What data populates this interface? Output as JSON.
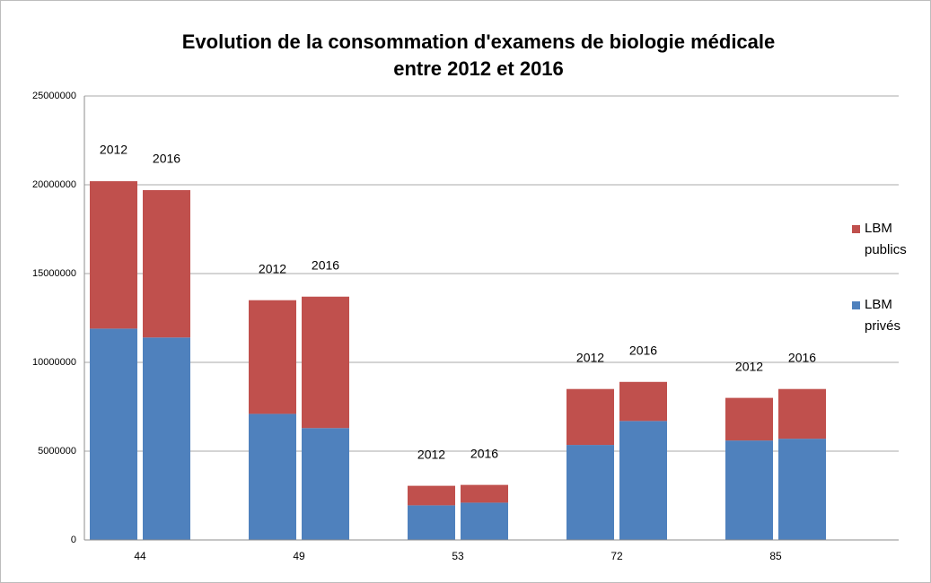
{
  "chart_data": {
    "type": "grouped-stacked-bar",
    "title": "Evolution de la consommation d'examens de biologie médicale entre 2012 et 2016",
    "categories": [
      "44",
      "49",
      "53",
      "72",
      "85"
    ],
    "sub_categories": [
      "2012",
      "2016"
    ],
    "series": [
      {
        "name": "LBM privés",
        "color": "#4f81bd",
        "values": [
          [
            11900000,
            11400000
          ],
          [
            7100000,
            6300000
          ],
          [
            1950000,
            2100000
          ],
          [
            5350000,
            6700000
          ],
          [
            5600000,
            5700000
          ]
        ]
      },
      {
        "name": "LBM publics",
        "color": "#c0504d",
        "values": [
          [
            8300000,
            8300000
          ],
          [
            6400000,
            7400000
          ],
          [
            1100000,
            1000000
          ],
          [
            3150000,
            2200000
          ],
          [
            2400000,
            2800000
          ]
        ]
      }
    ],
    "ylim": [
      0,
      25000000
    ],
    "yticks": [
      0,
      5000000,
      10000000,
      15000000,
      20000000,
      25000000
    ],
    "grid": true,
    "legend": "right"
  }
}
